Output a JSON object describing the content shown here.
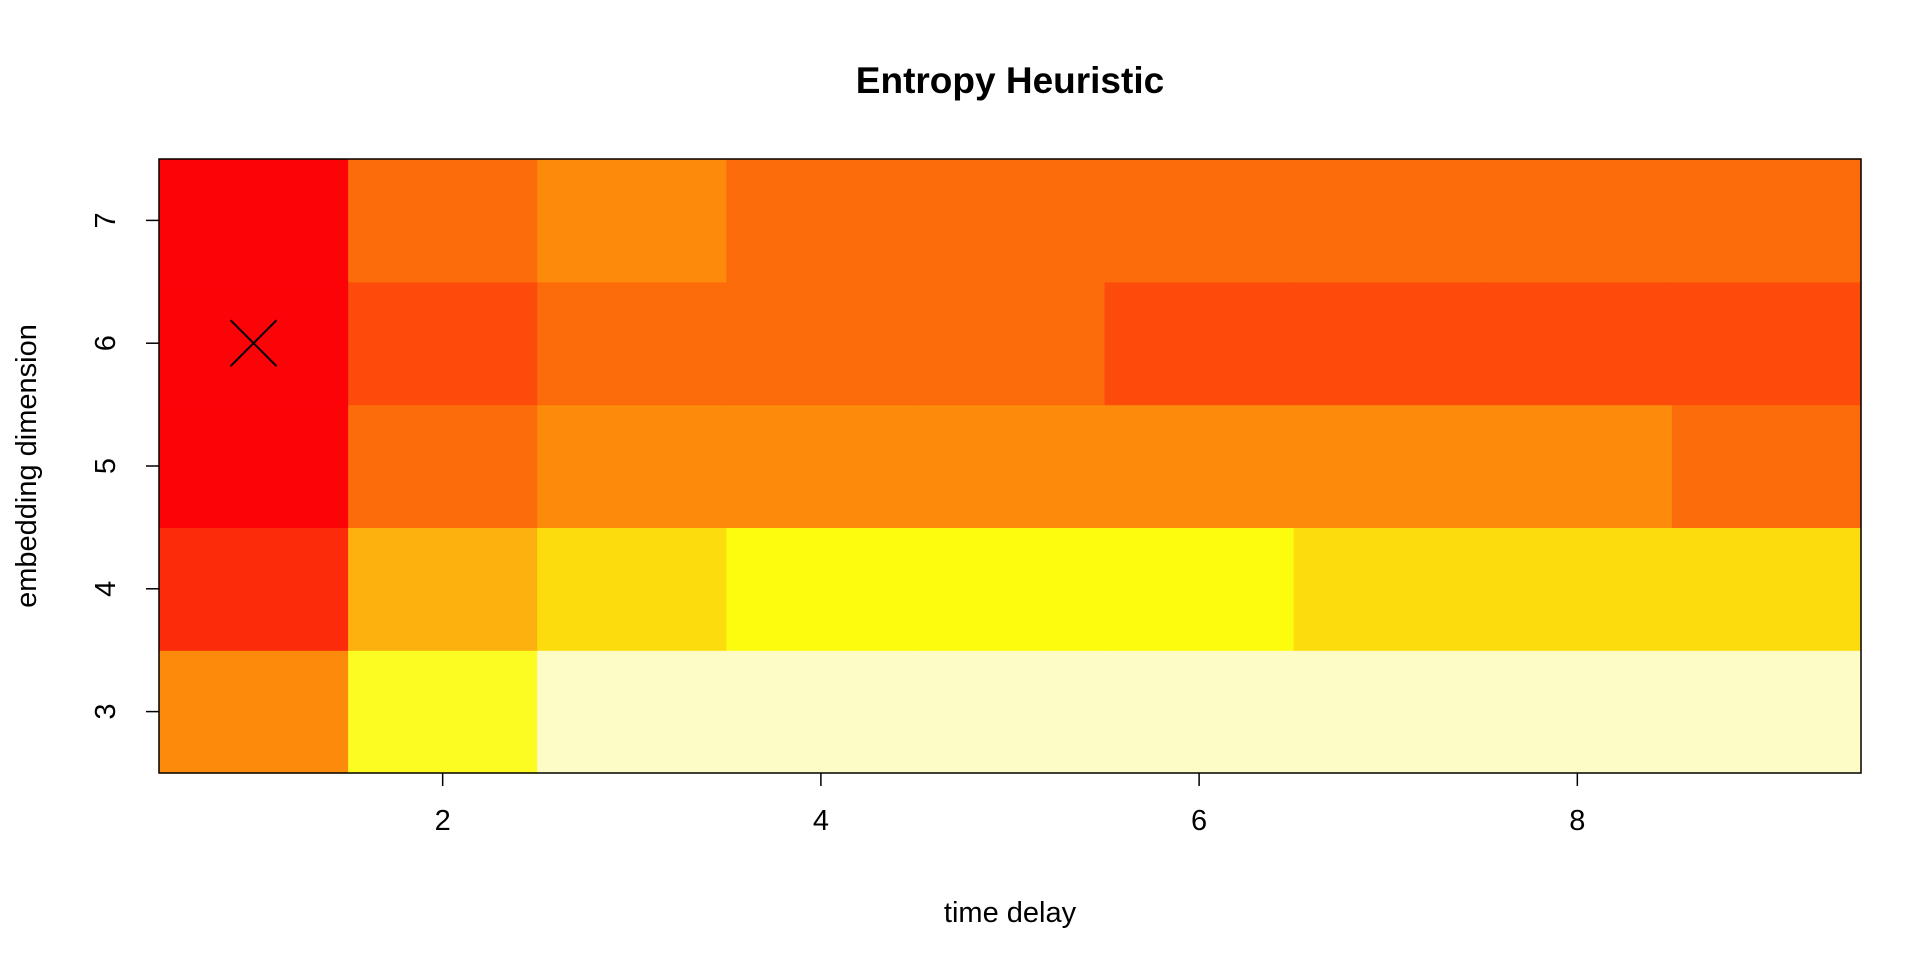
{
  "chart_data": {
    "type": "heatmap",
    "title": "Entropy Heuristic",
    "xlabel": "time delay",
    "ylabel": "embedding dimension",
    "x": [
      1,
      2,
      3,
      4,
      5,
      6,
      7,
      8,
      9
    ],
    "y": [
      3,
      4,
      5,
      6,
      7
    ],
    "xlim": [
      0.5,
      9.5
    ],
    "ylim": [
      2.5,
      7.5
    ],
    "x_ticks": [
      "2",
      "4",
      "6",
      "8"
    ],
    "y_ticks": [
      "3",
      "4",
      "5",
      "6",
      "7"
    ],
    "colors": {
      "red": "#fc0308",
      "red_orange": "#fc2c0b",
      "dark_orange": "#fc4b0b",
      "orange": "#fc6c0b",
      "light_orange": "#fc8b0b",
      "amber": "#fdb10e",
      "gold": "#fddc0e",
      "yellow": "#fdfc0e",
      "bright_yellow": "#fdfc22",
      "cream": "#fefcc6"
    },
    "cells": [
      [
        "light_orange",
        "bright_yellow",
        "cream",
        "cream",
        "cream",
        "cream",
        "cream",
        "cream",
        "cream"
      ],
      [
        "red_orange",
        "amber",
        "gold",
        "yellow",
        "yellow",
        "yellow",
        "gold",
        "gold",
        "gold"
      ],
      [
        "red",
        "orange",
        "light_orange",
        "light_orange",
        "light_orange",
        "light_orange",
        "light_orange",
        "light_orange",
        "orange"
      ],
      [
        "red",
        "dark_orange",
        "orange",
        "orange",
        "orange",
        "dark_orange",
        "dark_orange",
        "dark_orange",
        "dark_orange"
      ],
      [
        "red",
        "orange",
        "light_orange",
        "orange",
        "orange",
        "orange",
        "orange",
        "orange",
        "orange"
      ]
    ],
    "optimum_marker": {
      "x": 1,
      "y": 6,
      "symbol": "X"
    }
  }
}
